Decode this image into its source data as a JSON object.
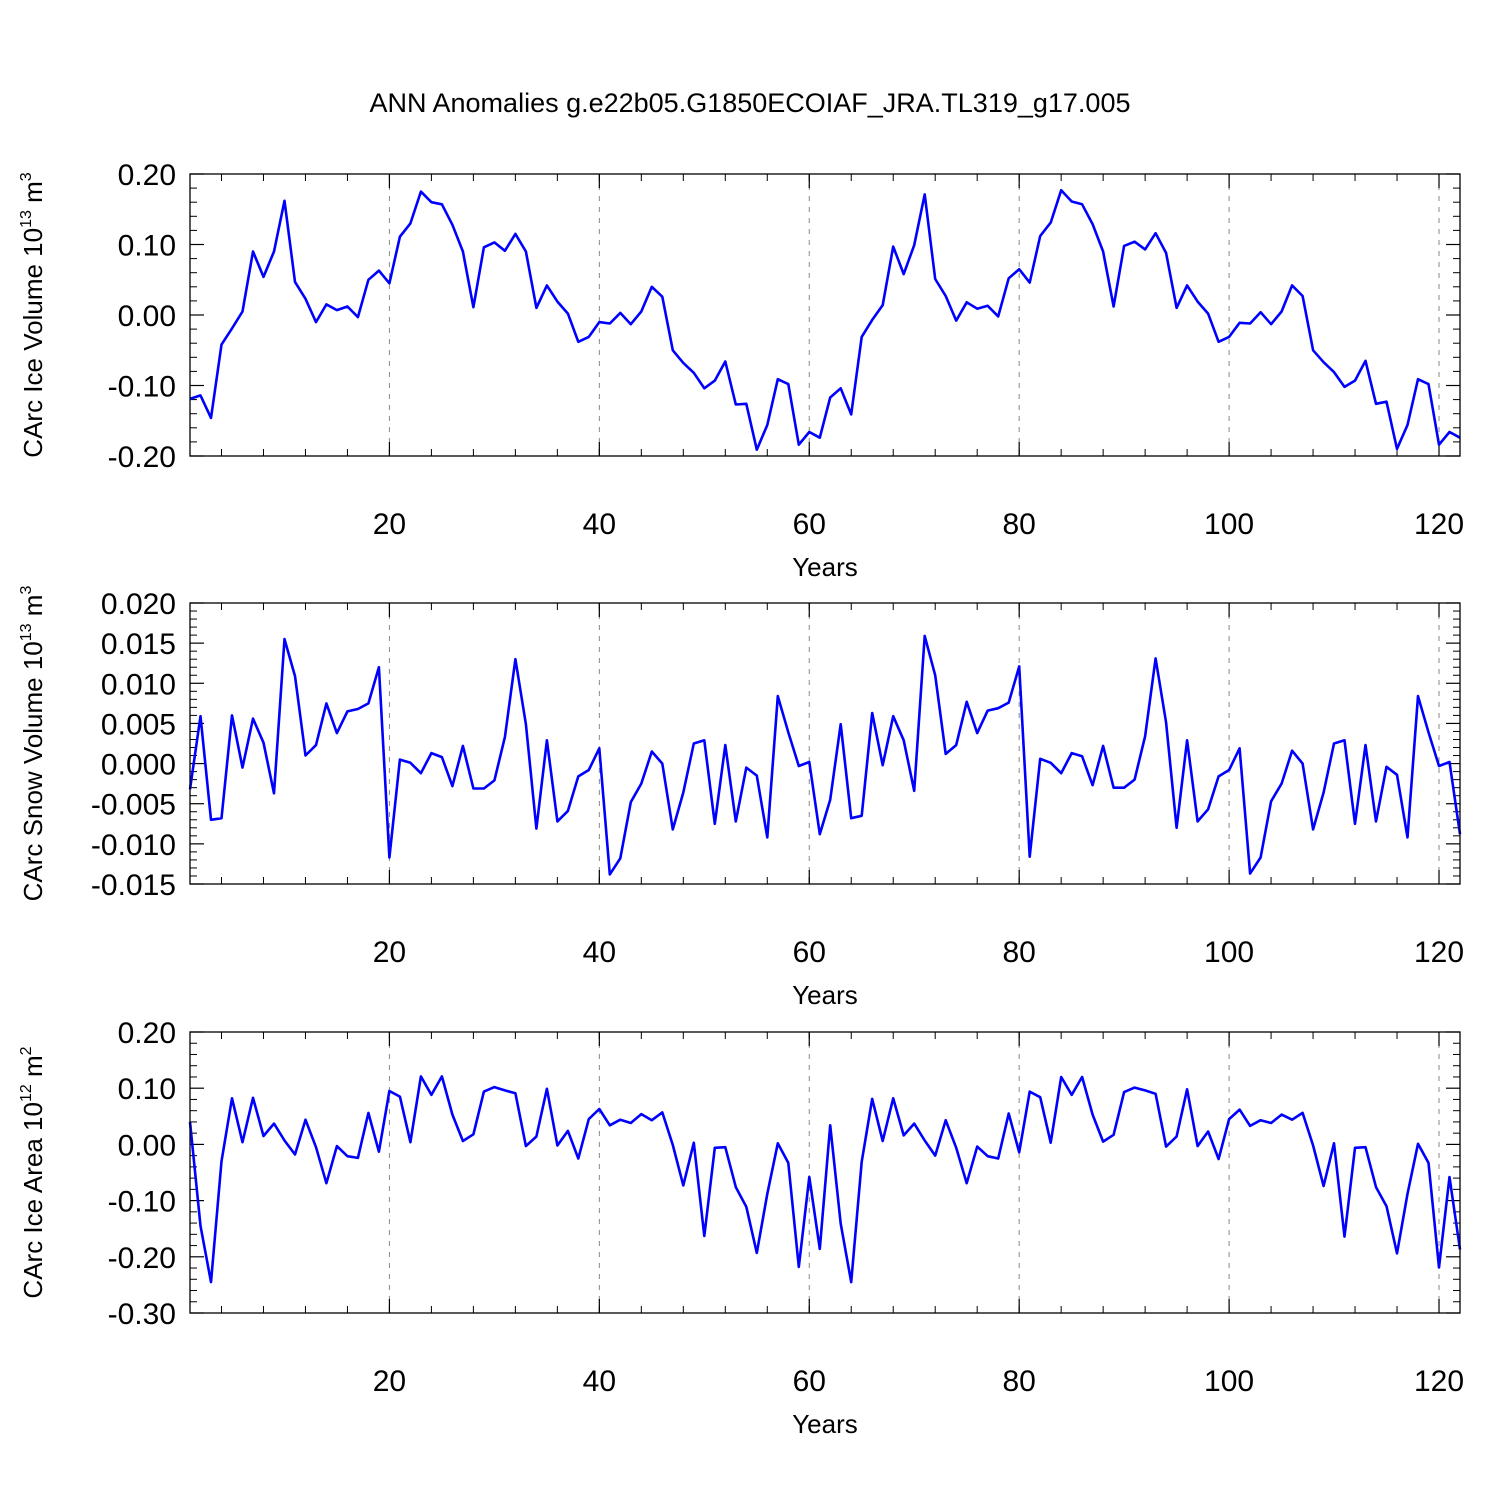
{
  "title": "ANN Anomalies g.e22b05.G1850ECOIAF_JRA.TL319_g17.005",
  "colors": {
    "line": "#0000ff",
    "axis": "#000000",
    "grid": "#888888"
  },
  "chart_data": [
    {
      "type": "line",
      "ylabel": {
        "main": "CArc Ice Volume 10",
        "exponent": "13",
        "unit": " m",
        "unit_exponent": "3"
      },
      "xlabel": "Years",
      "xlim": [
        1,
        122
      ],
      "ylim": [
        -0.2,
        0.2
      ],
      "xticks": [
        20,
        40,
        60,
        80,
        100,
        120
      ],
      "yticks": [
        -0.2,
        -0.1,
        0.0,
        0.1,
        0.2
      ],
      "ytick_labels": [
        "-0.20",
        "-0.10",
        "0.00",
        "0.10",
        "0.20"
      ],
      "grid_x": [
        20,
        40,
        60,
        80,
        100,
        120
      ],
      "series": [
        {
          "values": [
            -0.119,
            -0.114,
            -0.146,
            -0.042,
            -0.019,
            0.005,
            0.09,
            0.054,
            0.09,
            0.162,
            0.047,
            0.023,
            -0.01,
            0.015,
            0.007,
            0.012,
            -0.003,
            0.05,
            0.063,
            0.045,
            0.111,
            0.13,
            0.175,
            0.16,
            0.157,
            0.128,
            0.09,
            0.011,
            0.096,
            0.103,
            0.091,
            0.115,
            0.09,
            0.01,
            0.042,
            0.019,
            0.002,
            -0.038,
            -0.031,
            -0.01,
            -0.012,
            0.003,
            -0.013,
            0.005,
            0.04,
            0.026,
            -0.05,
            -0.068,
            -0.082,
            -0.104,
            -0.093,
            -0.066,
            -0.127,
            -0.126,
            -0.191,
            -0.156,
            -0.091,
            -0.098,
            -0.184,
            -0.166,
            -0.174,
            -0.117,
            -0.104,
            -0.141,
            -0.031,
            -0.007,
            0.014,
            0.097,
            0.058,
            0.099,
            0.171,
            0.051,
            0.027,
            -0.008,
            0.018,
            0.009,
            0.013,
            -0.002,
            0.052,
            0.065,
            0.046,
            0.112,
            0.131,
            0.177,
            0.161,
            0.157,
            0.129,
            0.09,
            0.012,
            0.098,
            0.104,
            0.093,
            0.116,
            0.088,
            0.01,
            0.042,
            0.019,
            0.002,
            -0.038,
            -0.031,
            -0.011,
            -0.012,
            0.004,
            -0.013,
            0.005,
            0.042,
            0.027,
            -0.05,
            -0.067,
            -0.081,
            -0.102,
            -0.093,
            -0.065,
            -0.126,
            -0.123,
            -0.19,
            -0.156,
            -0.091,
            -0.098,
            -0.184,
            -0.166,
            -0.174
          ]
        }
      ]
    },
    {
      "type": "line",
      "ylabel": {
        "main": "CArc Snow Volume 10",
        "exponent": "13",
        "unit": " m",
        "unit_exponent": "3"
      },
      "xlabel": "Years",
      "xlim": [
        1,
        122
      ],
      "ylim": [
        -0.015,
        0.02
      ],
      "xticks": [
        20,
        40,
        60,
        80,
        100,
        120
      ],
      "yticks": [
        -0.015,
        -0.01,
        -0.005,
        0.0,
        0.005,
        0.01,
        0.015,
        0.02
      ],
      "ytick_labels": [
        "-0.015",
        "-0.010",
        "-0.005",
        "0.000",
        "0.005",
        "0.010",
        "0.015",
        "0.020"
      ],
      "grid_x": [
        20,
        40,
        60,
        80,
        100,
        120
      ],
      "series": [
        {
          "values": [
            -0.0032,
            0.0059,
            -0.007,
            -0.0068,
            0.006,
            -0.0005,
            0.0056,
            0.0026,
            -0.0037,
            0.0155,
            0.0109,
            0.001,
            0.0023,
            0.0075,
            0.0038,
            0.0065,
            0.0068,
            0.0075,
            0.012,
            -0.0117,
            0.0005,
            0.0001,
            -0.0012,
            0.0013,
            0.0008,
            -0.0028,
            0.0022,
            -0.0031,
            -0.0031,
            -0.0021,
            0.0033,
            0.013,
            0.0049,
            -0.0081,
            0.0029,
            -0.0072,
            -0.0059,
            -0.0016,
            -0.0008,
            0.0019,
            -0.0138,
            -0.0118,
            -0.0048,
            -0.0025,
            0.0015,
            0.0,
            -0.0082,
            -0.0036,
            0.0025,
            0.0029,
            -0.0075,
            0.0023,
            -0.0072,
            -0.0005,
            -0.0015,
            -0.0092,
            0.0084,
            0.0039,
            -0.0003,
            0.0002,
            -0.0088,
            -0.0045,
            0.0049,
            -0.0068,
            -0.0065,
            0.0063,
            -0.0002,
            0.0059,
            0.0029,
            -0.0034,
            0.0159,
            0.011,
            0.0012,
            0.0023,
            0.0077,
            0.0038,
            0.0066,
            0.0069,
            0.0076,
            0.0121,
            -0.0116,
            0.0006,
            0.0001,
            -0.0012,
            0.0013,
            0.0009,
            -0.0027,
            0.0022,
            -0.003,
            -0.003,
            -0.002,
            0.0034,
            0.0131,
            0.0051,
            -0.008,
            0.0029,
            -0.0072,
            -0.0057,
            -0.0016,
            -0.0008,
            0.0019,
            -0.0137,
            -0.0117,
            -0.0047,
            -0.0025,
            0.0016,
            0.0,
            -0.0082,
            -0.0036,
            0.0025,
            0.0029,
            -0.0075,
            0.0023,
            -0.0072,
            -0.0004,
            -0.0014,
            -0.0092,
            0.0084,
            0.0039,
            -0.0003,
            0.0002,
            -0.0088
          ]
        }
      ]
    },
    {
      "type": "line",
      "ylabel": {
        "main": "CArc Ice Area 10",
        "exponent": "12",
        "unit": " m",
        "unit_exponent": "2"
      },
      "xlabel": "Years",
      "xlim": [
        1,
        122
      ],
      "ylim": [
        -0.3,
        0.2
      ],
      "xticks": [
        20,
        40,
        60,
        80,
        100,
        120
      ],
      "yticks": [
        -0.3,
        -0.2,
        -0.1,
        0.0,
        0.1,
        0.2
      ],
      "ytick_labels": [
        "-0.30",
        "-0.20",
        "-0.10",
        "0.00",
        "0.10",
        "0.20"
      ],
      "grid_x": [
        20,
        40,
        60,
        80,
        100,
        120
      ],
      "series": [
        {
          "values": [
            0.04,
            -0.145,
            -0.245,
            -0.03,
            0.082,
            0.004,
            0.083,
            0.015,
            0.037,
            0.007,
            -0.018,
            0.044,
            -0.005,
            -0.069,
            -0.003,
            -0.021,
            -0.024,
            0.056,
            -0.013,
            0.095,
            0.085,
            0.004,
            0.121,
            0.088,
            0.121,
            0.053,
            0.006,
            0.018,
            0.094,
            0.102,
            0.096,
            0.091,
            -0.003,
            0.014,
            0.099,
            -0.002,
            0.024,
            -0.025,
            0.045,
            0.063,
            0.034,
            0.044,
            0.038,
            0.054,
            0.043,
            0.057,
            -0.001,
            -0.073,
            0.003,
            -0.163,
            -0.006,
            -0.005,
            -0.076,
            -0.111,
            -0.193,
            -0.088,
            0.002,
            -0.033,
            -0.218,
            -0.058,
            -0.186,
            0.034,
            -0.141,
            -0.245,
            -0.031,
            0.081,
            0.006,
            0.082,
            0.016,
            0.037,
            0.007,
            -0.02,
            0.043,
            -0.006,
            -0.069,
            -0.004,
            -0.021,
            -0.025,
            0.055,
            -0.014,
            0.094,
            0.084,
            0.003,
            0.12,
            0.088,
            0.12,
            0.053,
            0.005,
            0.017,
            0.093,
            0.101,
            0.096,
            0.09,
            -0.004,
            0.014,
            0.098,
            -0.003,
            0.023,
            -0.026,
            0.045,
            0.062,
            0.033,
            0.043,
            0.038,
            0.053,
            0.044,
            0.056,
            -0.002,
            -0.074,
            0.002,
            -0.164,
            -0.006,
            -0.005,
            -0.076,
            -0.11,
            -0.194,
            -0.088,
            0.001,
            -0.033,
            -0.219,
            -0.058,
            -0.187
          ]
        }
      ]
    }
  ]
}
